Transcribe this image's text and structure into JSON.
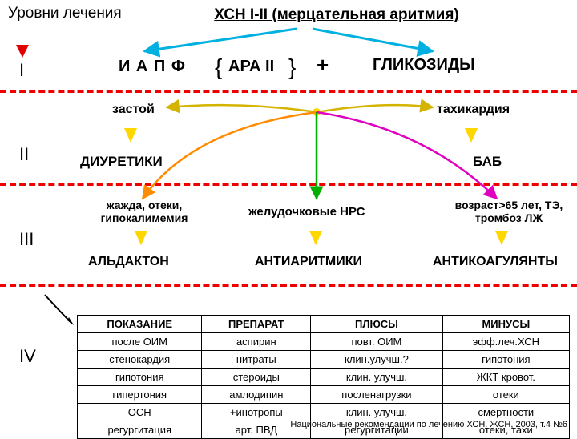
{
  "header": {
    "levels": "Уровни лечения",
    "title": "ХСН I-II (мерцательная  аритмия)"
  },
  "levelI": {
    "roman": "I",
    "iapf": "И А П Ф",
    "ara": "АРА II",
    "plus": "+",
    "glyc": "ГЛИКОЗИДЫ"
  },
  "levelII": {
    "roman": "II",
    "left_top": "застой",
    "right_top": "тахикардия",
    "left_drug": "ДИУРЕТИКИ",
    "right_drug": "БАБ"
  },
  "levelIII": {
    "roman": "III",
    "c1_top": "жажда, отеки, гипокалимемия",
    "c2_top": "желудочковые НРС",
    "c3_top": "возраст>65 лет, ТЭ, тромбоз ЛЖ",
    "c1_drug": "АЛЬДАКТОН",
    "c2_drug": "АНТИАРИТМИКИ",
    "c3_drug": "АНТИКОАГУЛЯНТЫ"
  },
  "levelIV": {
    "roman": "IV"
  },
  "table": {
    "headers": [
      "ПОКАЗАНИЕ",
      "ПРЕПАРАТ",
      "ПЛЮСЫ",
      "МИНУСЫ"
    ],
    "rows": [
      [
        "после ОИМ",
        "аспирин",
        "повт. ОИМ",
        "эфф.леч.ХСН"
      ],
      [
        "стенокардия",
        "нитраты",
        "клин.улучш.?",
        "гипотония"
      ],
      [
        "гипотония",
        "стероиды",
        "клин. улучш.",
        "ЖКТ кровот."
      ],
      [
        "гипертония",
        "амлодипин",
        "посленагрузки",
        "отеки"
      ],
      [
        "ОСН",
        "+инотропы",
        "клин. улучш.",
        "смертности"
      ],
      [
        "регургитация",
        "арт. ПВД",
        "регургитации",
        "отеки, тахи"
      ]
    ]
  },
  "footer": "Национальные рекомендации по лечению ХСН. ЖСН, 2003, т.4 №6",
  "colors": {
    "red": "#e00000",
    "cyan": "#00b0e0",
    "yellow": "#ffd700",
    "orange": "#ff8c00",
    "green": "#00b000",
    "magenta": "#e000c0",
    "black": "#000"
  }
}
